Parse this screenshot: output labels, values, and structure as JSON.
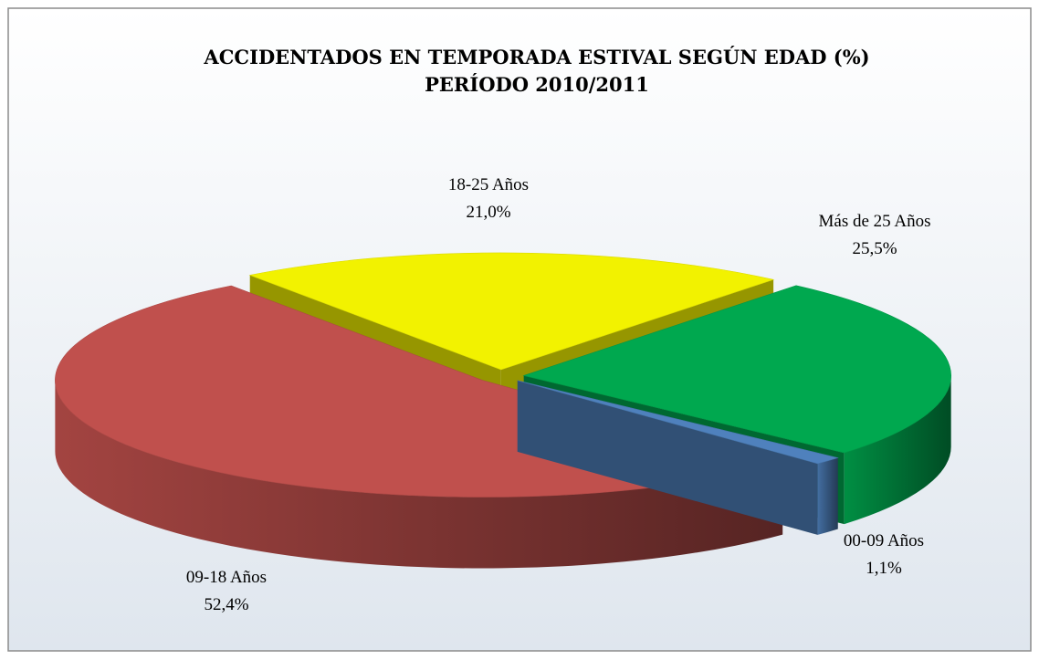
{
  "chart_data": {
    "type": "pie3d",
    "title": "ACCIDENTADOS EN TEMPORADA ESTIVAL SEGÚN EDAD (%)",
    "subtitle": "PERÍODO 2010/2011",
    "categories": [
      "18-25 Años",
      "Más de 25 Años",
      "00-09 Años",
      "09-18 Años"
    ],
    "values": [
      21.0,
      25.5,
      1.1,
      52.4
    ],
    "value_labels": [
      "21,0%",
      "25,5%",
      "1,1%",
      "52,4%"
    ],
    "colors": [
      "#f2f200",
      "#00a84f",
      "#4f81bd",
      "#c0504d"
    ]
  }
}
